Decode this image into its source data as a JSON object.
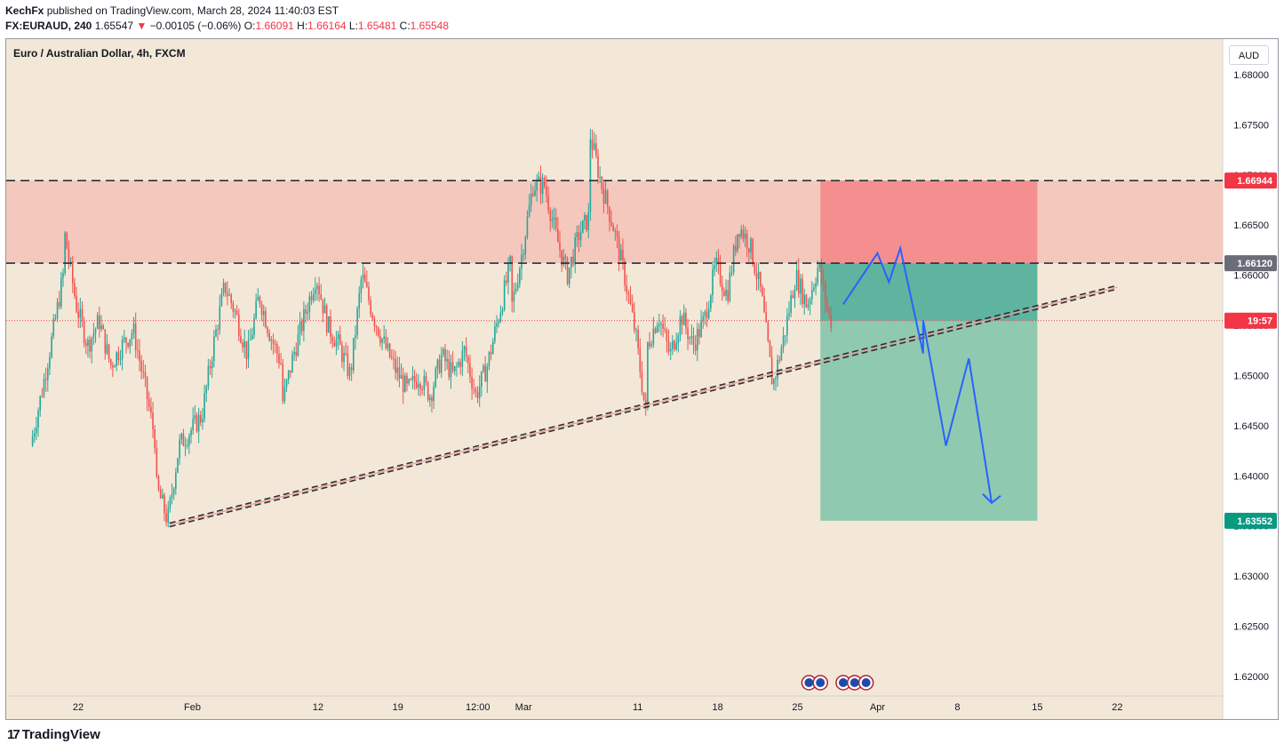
{
  "header": {
    "author": "KechFx",
    "published_text": "published on TradingView.com, March 28, 2024 11:40:03 EST",
    "symbol": "FX:EURAUD, 240",
    "last_price": "1.65547",
    "change_arrow": "▼",
    "change": "−0.00105 (−0.06%)",
    "open_label": "O:",
    "open": "1.66091",
    "high_label": "H:",
    "high": "1.66164",
    "low_label": "L:",
    "low": "1.65481",
    "close_label": "C:",
    "close": "1.65548"
  },
  "chart_title": "Euro / Australian Dollar, 4h, FXCM",
  "currency_button": "AUD",
  "footer": {
    "logo_text": "TradingView",
    "logo_icon": "tradingview-logo-icon"
  },
  "colors": {
    "background": "#f3e8d7",
    "bull": "#26a69a",
    "bear": "#ef5350",
    "stop_zone": "#f58f8f",
    "target_zone": "#8fc9b0",
    "entry_target": "#5fb49f",
    "resistance_zone": "#f5c8bd",
    "projection": "#2962ff",
    "label_red": "#f23645",
    "label_green": "#089981",
    "label_gray": "#6a6d78"
  },
  "chart_data": {
    "type": "candlestick",
    "x_ticks": [
      "22",
      "Feb",
      "12",
      "19",
      "12:00",
      "Mar",
      "11",
      "18",
      "25",
      "Apr",
      "8",
      "15",
      "22"
    ],
    "y_ticks": [
      "1.68000",
      "1.67500",
      "1.67000",
      "1.66500",
      "1.66000",
      "1.65500",
      "1.65000",
      "1.64500",
      "1.64000",
      "1.63500",
      "1.63000",
      "1.62500",
      "1.62000"
    ],
    "ylim": [
      1.6175,
      1.6825
    ],
    "price_labels": [
      {
        "value": 1.66944,
        "text": "1.66944",
        "kind": "stop"
      },
      {
        "value": 1.6612,
        "text": "1.66120",
        "kind": "resistance"
      },
      {
        "value": 1.65547,
        "text": "19:57",
        "kind": "countdown"
      },
      {
        "value": 1.63552,
        "text": "1.63552",
        "kind": "target"
      }
    ],
    "levels": {
      "upper": 1.66944,
      "lower": 1.6612,
      "current": 1.65547
    },
    "position": {
      "entry": 1.65547,
      "stop": 1.66944,
      "target": 1.63552,
      "from": "Mar 27",
      "to": "Apr 15"
    },
    "trendline": [
      {
        "date": "Jan 30",
        "value": 1.6351
      },
      {
        "date": "Apr 22",
        "value": 1.6588
      }
    ],
    "projection_path": [
      {
        "date": "Mar 29",
        "value": 1.6571
      },
      {
        "date": "Apr 1",
        "value": 1.6622
      },
      {
        "date": "Apr 2",
        "value": 1.6593
      },
      {
        "date": "Apr 3",
        "value": 1.6627
      },
      {
        "date": "Apr 5",
        "value": 1.6522
      },
      {
        "date": "Apr 5",
        "value": 1.6555
      },
      {
        "date": "Apr 7",
        "value": 1.643
      },
      {
        "date": "Apr 9",
        "value": 1.6517
      },
      {
        "date": "Apr 11",
        "value": 1.6373
      }
    ],
    "price_path": [
      {
        "date": "Jan 18",
        "value": 1.643
      },
      {
        "date": "Jan 19",
        "value": 1.6485
      },
      {
        "date": "Jan 20",
        "value": 1.6545
      },
      {
        "date": "Jan 21",
        "value": 1.661
      },
      {
        "date": "Jan 21",
        "value": 1.664
      },
      {
        "date": "Jan 22",
        "value": 1.657
      },
      {
        "date": "Jan 23",
        "value": 1.653
      },
      {
        "date": "Jan 24",
        "value": 1.6555
      },
      {
        "date": "Jan 25",
        "value": 1.651
      },
      {
        "date": "Jan 26",
        "value": 1.653
      },
      {
        "date": "Jan 27",
        "value": 1.6545
      },
      {
        "date": "Jan 28",
        "value": 1.649
      },
      {
        "date": "Jan 29",
        "value": 1.643
      },
      {
        "date": "Jan 29",
        "value": 1.639
      },
      {
        "date": "Jan 30",
        "value": 1.6355
      },
      {
        "date": "Jan 31",
        "value": 1.643
      },
      {
        "date": "Feb 2",
        "value": 1.646
      },
      {
        "date": "Feb 3",
        "value": 1.653
      },
      {
        "date": "Feb 4",
        "value": 1.659
      },
      {
        "date": "Feb 5",
        "value": 1.656
      },
      {
        "date": "Feb 6",
        "value": 1.652
      },
      {
        "date": "Feb 7",
        "value": 1.658
      },
      {
        "date": "Feb 8",
        "value": 1.654
      },
      {
        "date": "Feb 9",
        "value": 1.651
      },
      {
        "date": "Feb 9",
        "value": 1.647
      },
      {
        "date": "Feb 10",
        "value": 1.652
      },
      {
        "date": "Feb 11",
        "value": 1.656
      },
      {
        "date": "Feb 12",
        "value": 1.66
      },
      {
        "date": "Feb 13",
        "value": 1.655
      },
      {
        "date": "Feb 14",
        "value": 1.653
      },
      {
        "date": "Feb 15",
        "value": 1.65
      },
      {
        "date": "Feb 16",
        "value": 1.66
      },
      {
        "date": "Feb 17",
        "value": 1.656
      },
      {
        "date": "Feb 18",
        "value": 1.653
      },
      {
        "date": "Feb 19",
        "value": 1.6505
      },
      {
        "date": "Feb 20",
        "value": 1.6485
      },
      {
        "date": "Feb 21",
        "value": 1.65
      },
      {
        "date": "Feb 22",
        "value": 1.648
      },
      {
        "date": "Feb 23",
        "value": 1.652
      },
      {
        "date": "Feb 24",
        "value": 1.65
      },
      {
        "date": "Feb 25",
        "value": 1.6525
      },
      {
        "date": "Feb 26",
        "value": 1.648
      },
      {
        "date": "Feb 27",
        "value": 1.651
      },
      {
        "date": "Feb 28",
        "value": 1.656
      },
      {
        "date": "Feb 29",
        "value": 1.661
      },
      {
        "date": "Feb 29",
        "value": 1.656
      },
      {
        "date": "Mar 1",
        "value": 1.662
      },
      {
        "date": "Mar 2",
        "value": 1.669
      },
      {
        "date": "Mar 3",
        "value": 1.669
      },
      {
        "date": "Mar 4",
        "value": 1.664
      },
      {
        "date": "Mar 5",
        "value": 1.66
      },
      {
        "date": "Mar 6",
        "value": 1.664
      },
      {
        "date": "Mar 7",
        "value": 1.666
      },
      {
        "date": "Mar 7",
        "value": 1.674
      },
      {
        "date": "Mar 8",
        "value": 1.669
      },
      {
        "date": "Mar 9",
        "value": 1.665
      },
      {
        "date": "Mar 10",
        "value": 1.66
      },
      {
        "date": "Mar 11",
        "value": 1.654
      },
      {
        "date": "Mar 12",
        "value": 1.645
      },
      {
        "date": "Mar 12",
        "value": 1.653
      },
      {
        "date": "Mar 13",
        "value": 1.656
      },
      {
        "date": "Mar 14",
        "value": 1.652
      },
      {
        "date": "Mar 15",
        "value": 1.656
      },
      {
        "date": "Mar 16",
        "value": 1.653
      },
      {
        "date": "Mar 17",
        "value": 1.6555
      },
      {
        "date": "Mar 18",
        "value": 1.661
      },
      {
        "date": "Mar 19",
        "value": 1.658
      },
      {
        "date": "Mar 20",
        "value": 1.665
      },
      {
        "date": "Mar 21",
        "value": 1.663
      },
      {
        "date": "Mar 22",
        "value": 1.658
      },
      {
        "date": "Mar 23",
        "value": 1.649
      },
      {
        "date": "Mar 24",
        "value": 1.654
      },
      {
        "date": "Mar 25",
        "value": 1.66
      },
      {
        "date": "Mar 26",
        "value": 1.657
      },
      {
        "date": "Mar 27",
        "value": 1.661
      },
      {
        "date": "Mar 28",
        "value": 1.6555
      }
    ],
    "events": [
      {
        "date": "Mar 26",
        "icon": "event-flag-icon"
      },
      {
        "date": "Mar 27",
        "icon": "event-flag-icon"
      },
      {
        "date": "Mar 29",
        "icon": "event-flag-icon"
      },
      {
        "date": "Mar 30",
        "icon": "event-flag-icon"
      },
      {
        "date": "Mar 31",
        "icon": "event-flag-icon"
      }
    ]
  }
}
